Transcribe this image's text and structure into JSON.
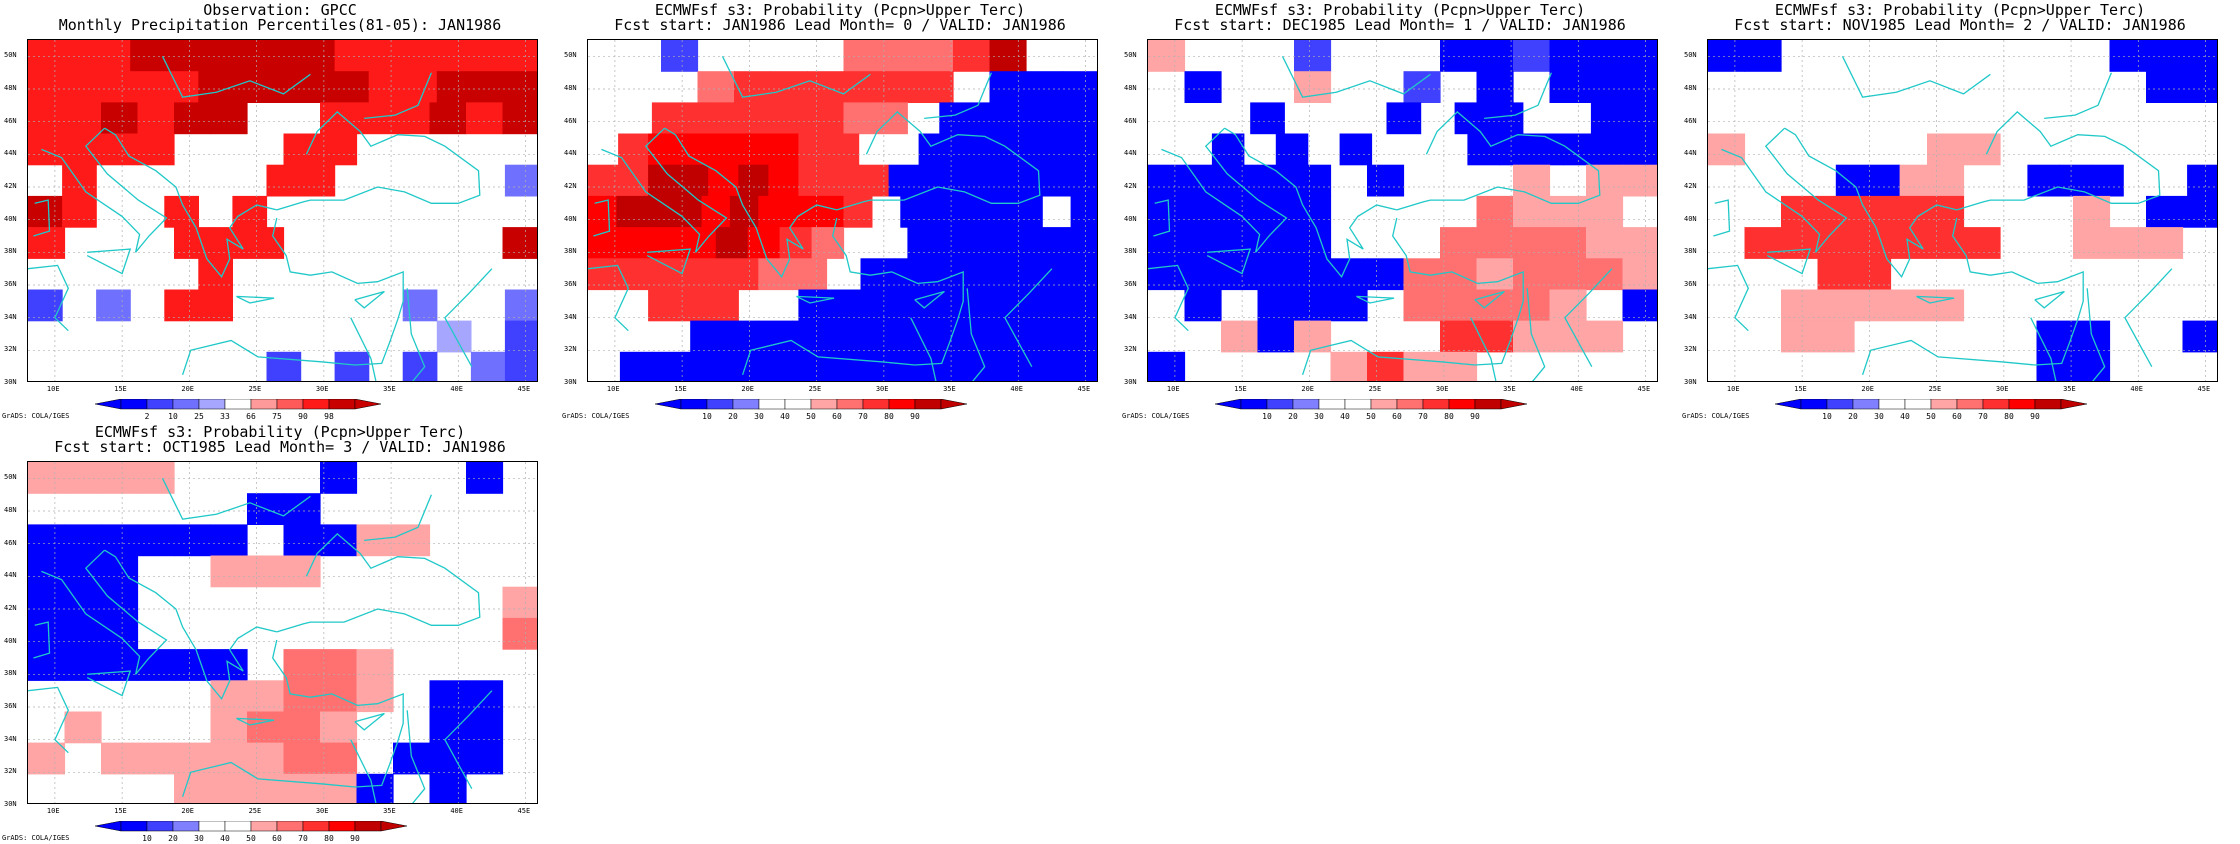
{
  "colorbars": {
    "percentile": {
      "labels": [
        "2",
        "10",
        "25",
        "33",
        "66",
        "75",
        "90",
        "98"
      ],
      "colors": [
        "#0000ff",
        "#4040ff",
        "#7070ff",
        "#a6a6ff",
        "#ffffff",
        "#ff9a9a",
        "#ff5a5a",
        "#ff1a1a",
        "#c80000"
      ]
    },
    "probability": {
      "labels": [
        "10",
        "20",
        "30",
        "40",
        "50",
        "60",
        "70",
        "80",
        "90"
      ],
      "colors": [
        "#0000ff",
        "#4040ff",
        "#8080ff",
        "#ffffff",
        "#ffffff",
        "#ffa5a5",
        "#ff7070",
        "#ff3030",
        "#ff0000",
        "#c00000"
      ]
    }
  },
  "axes": {
    "x_labels": [
      "10E",
      "15E",
      "20E",
      "25E",
      "30E",
      "35E",
      "40E",
      "45E"
    ],
    "y_labels": [
      "50N",
      "48N",
      "46N",
      "44N",
      "42N",
      "40N",
      "38N",
      "36N",
      "34N",
      "32N",
      "30N"
    ],
    "lon_range": [
      8,
      46
    ],
    "lat_range": [
      30,
      51
    ]
  },
  "credit": "GrADS: COLA/IGES",
  "panels": [
    {
      "title1": "Observation: GPCC",
      "title2": "Monthly Precipitation Percentiles(81-05): JAN1986",
      "colorbar": "percentile",
      "grid": [
        "777888888777777",
        "777778888877888",
        "77878844777878",
        "77774447744444",
        "4744444774444 2",
        "874474744444444",
        "74447774444448",
        "4444474444444 4",
        "1 24774444 24 2",
        "4444 4444 4 3 1",
        "444444 1 1 1 21"
      ]
    },
    {
      "title1": "ECMWFsf s3: Probability (Pcpn>Upper Terc)",
      "title2": "Fcst start: JAN1986  Lead Month= 0 / VALID: JAN1986",
      "colorbar": "probability",
      "grid": [
        "44144446667944",
        "44467777774000",
        "4477777766400000",
        "47888887744000000",
        "77998987770000000",
        "899989888740000040",
        "8888987644000000",
        "777776640000000",
        "44777440000000000",
        "444000000000000",
        "4000000000000000"
      ]
    },
    {
      "title1": "ECMWFsf s3: Probability (Pcpn>Upper Terc)",
      "title2": "Fcst start: DEC1985  Lead Month= 1 / VALID: JAN1986",
      "colorbar": "probability",
      "grid": [
        "54441444001000",
        "40445441404000",
        "444044404004400",
        "4404040444000000",
        "00000404445455",
        "00000444465554",
        "00000444666655",
        "00000006656665",
        "40400046666540",
        "44505444775554",
        "04444575544444"
      ]
    },
    {
      "title1": "ECMWFsf s3: Probability (Pcpn>Upper Terc)",
      "title2": "Fcst start: NOV1985  Lead Month= 2 / VALID: JAN1986",
      "colorbar": "probability",
      "grid": [
        "00444444444000",
        "44444444444400",
        "44444444444444",
        "54444455444444",
        "4444005544000440",
        "44777774445400",
        "47777777445554",
        "44477444444444",
        "44555554444444",
        "44554444400440",
        "44444444400444"
      ]
    },
    {
      "title1": "ECMWFsf s3: Probability (Pcpn>Upper Terc)",
      "title2": "Fcst start: OCT1985  Lead Month= 3 / VALID: JAN1986",
      "colorbar": "probability",
      "grid": [
        "55554444044404",
        "44444400444444",
        "00000040055444",
        "00044555444444",
        "00044444444445",
        "00044444444446",
        "00000046654444",
        "44444556654004",
        "45444566544004",
        "54555556640004",
        "44445555504044"
      ]
    }
  ]
}
